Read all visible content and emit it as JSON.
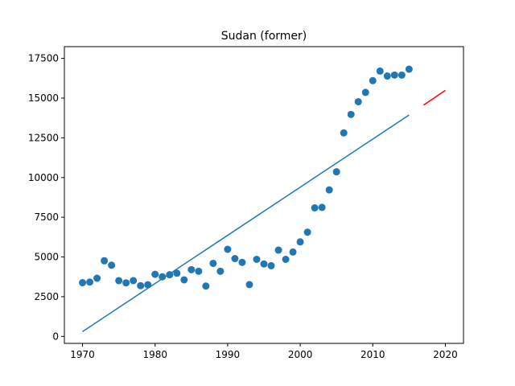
{
  "chart_data": {
    "type": "scatter",
    "title": "Sudan (former)",
    "xlabel": "",
    "ylabel": "",
    "xlim": [
      1967.5,
      2022.5
    ],
    "ylim": [
      -440,
      18240
    ],
    "xticks": [
      1970,
      1980,
      1990,
      2000,
      2010,
      2020
    ],
    "yticks": [
      0,
      2500,
      5000,
      7500,
      10000,
      12500,
      15000,
      17500
    ],
    "x_tick_labels": [
      "1970",
      "1980",
      "1990",
      "2000",
      "2010",
      "2020"
    ],
    "y_tick_labels": [
      "0",
      "2500",
      "5000",
      "7500",
      "10000",
      "12500",
      "15000",
      "17500"
    ],
    "grid": false,
    "legend": "none",
    "series": [
      {
        "kind": "scatter",
        "color": "#1f77b4",
        "points": [
          [
            1970,
            3380
          ],
          [
            1971,
            3420
          ],
          [
            1972,
            3660
          ],
          [
            1973,
            4760
          ],
          [
            1974,
            4480
          ],
          [
            1975,
            3510
          ],
          [
            1976,
            3370
          ],
          [
            1977,
            3510
          ],
          [
            1978,
            3190
          ],
          [
            1979,
            3250
          ],
          [
            1980,
            3910
          ],
          [
            1981,
            3750
          ],
          [
            1982,
            3880
          ],
          [
            1983,
            3980
          ],
          [
            1984,
            3560
          ],
          [
            1985,
            4200
          ],
          [
            1986,
            4100
          ],
          [
            1987,
            3170
          ],
          [
            1988,
            4600
          ],
          [
            1989,
            4100
          ],
          [
            1990,
            5480
          ],
          [
            1991,
            4900
          ],
          [
            1992,
            4660
          ],
          [
            1993,
            3260
          ],
          [
            1994,
            4850
          ],
          [
            1995,
            4560
          ],
          [
            1996,
            4450
          ],
          [
            1997,
            5430
          ],
          [
            1998,
            4850
          ],
          [
            1999,
            5310
          ],
          [
            2000,
            5950
          ],
          [
            2001,
            6560
          ],
          [
            2002,
            8090
          ],
          [
            2003,
            8120
          ],
          [
            2004,
            9220
          ],
          [
            2005,
            10360
          ],
          [
            2006,
            12810
          ],
          [
            2007,
            13970
          ],
          [
            2008,
            14770
          ],
          [
            2009,
            15360
          ],
          [
            2010,
            16100
          ],
          [
            2011,
            16700
          ],
          [
            2012,
            16390
          ],
          [
            2013,
            16450
          ],
          [
            2014,
            16450
          ],
          [
            2015,
            16820
          ]
        ]
      },
      {
        "kind": "line",
        "color": "#1f77b4",
        "points": [
          [
            1970,
            300
          ],
          [
            2015,
            13940
          ]
        ]
      },
      {
        "kind": "line",
        "color": "#ff0000",
        "points": [
          [
            2017,
            14560
          ],
          [
            2020,
            15490
          ]
        ]
      }
    ]
  }
}
